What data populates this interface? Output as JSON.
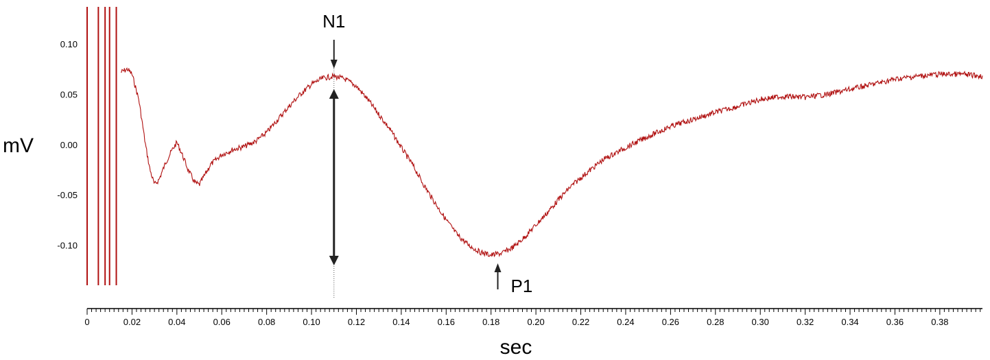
{
  "chart_data": {
    "type": "line",
    "title": "",
    "xlabel": "sec",
    "ylabel": "mV",
    "xlim": [
      0,
      0.399
    ],
    "ylim": [
      -0.14,
      0.137
    ],
    "grid": false,
    "trace_color": "#b01010",
    "x_ticks": [
      "0",
      "0.02",
      "0.04",
      "0.06",
      "0.08",
      "0.10",
      "0.12",
      "0.14",
      "0.16",
      "0.18",
      "0.20",
      "0.22",
      "0.24",
      "0.26",
      "0.28",
      "0.30",
      "0.32",
      "0.34",
      "0.36",
      "0.38"
    ],
    "y_ticks": [
      "0.10",
      "0.05",
      "0.00",
      "-0.05",
      "-0.10"
    ],
    "series": [
      {
        "x": [
          0.015,
          0.018,
          0.02,
          0.023,
          0.026,
          0.028,
          0.03,
          0.032,
          0.035,
          0.038,
          0.04,
          0.042,
          0.045,
          0.048,
          0.05,
          0.052,
          0.055,
          0.06,
          0.065,
          0.07,
          0.075,
          0.08,
          0.085,
          0.09,
          0.095,
          0.1,
          0.105,
          0.11,
          0.115,
          0.12,
          0.125,
          0.13,
          0.135,
          0.14,
          0.145,
          0.15,
          0.155,
          0.16,
          0.165,
          0.17,
          0.175,
          0.18,
          0.185,
          0.19,
          0.195,
          0.2,
          0.205,
          0.21,
          0.215,
          0.22,
          0.225,
          0.23,
          0.24,
          0.25,
          0.26,
          0.27,
          0.28,
          0.29,
          0.3,
          0.31,
          0.32,
          0.33,
          0.34,
          0.35,
          0.36,
          0.37,
          0.38,
          0.39,
          0.399
        ],
        "y": [
          0.072,
          0.075,
          0.07,
          0.045,
          0.0,
          -0.025,
          -0.04,
          -0.035,
          -0.018,
          -0.005,
          0.002,
          -0.008,
          -0.025,
          -0.038,
          -0.04,
          -0.032,
          -0.02,
          -0.01,
          -0.005,
          -0.002,
          0.003,
          0.012,
          0.025,
          0.038,
          0.05,
          0.06,
          0.066,
          0.068,
          0.065,
          0.058,
          0.045,
          0.03,
          0.015,
          -0.003,
          -0.02,
          -0.04,
          -0.058,
          -0.075,
          -0.09,
          -0.1,
          -0.107,
          -0.11,
          -0.108,
          -0.102,
          -0.092,
          -0.08,
          -0.068,
          -0.055,
          -0.043,
          -0.033,
          -0.024,
          -0.015,
          -0.003,
          0.008,
          0.018,
          0.025,
          0.032,
          0.038,
          0.045,
          0.048,
          0.047,
          0.05,
          0.055,
          0.06,
          0.065,
          0.068,
          0.07,
          0.07,
          0.068
        ]
      }
    ],
    "artifact_lines_x": [
      0.0,
      0.005,
      0.008,
      0.01,
      0.013
    ],
    "annotations": [
      {
        "label": "N1",
        "x": 0.11,
        "y": 0.068
      },
      {
        "label": "P1",
        "x": 0.183,
        "y": -0.11
      }
    ]
  }
}
